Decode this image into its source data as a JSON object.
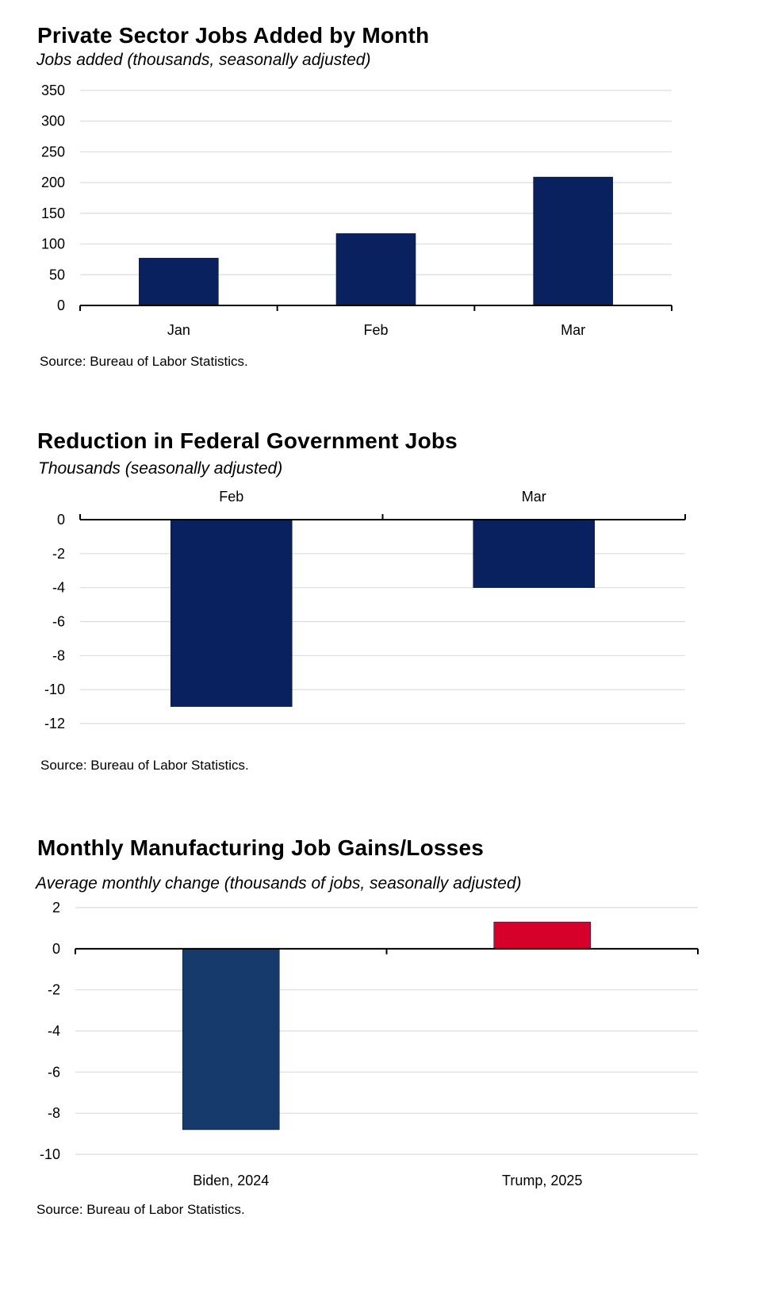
{
  "chart_data": [
    {
      "type": "bar",
      "title": "Private Sector Jobs Added by Month",
      "subtitle": "Jobs added (thousands, seasonally adjusted)",
      "categories": [
        "Jan",
        "Feb",
        "Mar"
      ],
      "values": [
        77,
        117,
        209
      ],
      "ylim": [
        0,
        350
      ],
      "yticks": [
        0,
        50,
        100,
        150,
        200,
        250,
        300,
        350
      ],
      "grid": true,
      "bar_colors": [
        "#0a2160",
        "#0a2160",
        "#0a2160"
      ],
      "source": "Source: Bureau of Labor Statistics."
    },
    {
      "type": "bar",
      "title": "Reduction in Federal Government Jobs",
      "subtitle": "Thousands (seasonally adjusted)",
      "categories": [
        "Feb",
        "Mar"
      ],
      "values": [
        -11,
        -4
      ],
      "ylim": [
        -12,
        0
      ],
      "yticks": [
        0,
        -2,
        -4,
        -6,
        -8,
        -10,
        -12
      ],
      "category_label_position": "top",
      "grid": true,
      "bar_colors": [
        "#0a2160",
        "#0a2160"
      ],
      "source": "Source: Bureau of Labor Statistics."
    },
    {
      "type": "bar",
      "title": "Monthly Manufacturing Job Gains/Losses",
      "subtitle": "Average monthly change (thousands of jobs, seasonally adjusted)",
      "categories": [
        "Biden, 2024",
        "Trump, 2025"
      ],
      "values": [
        -8.8,
        1.3
      ],
      "ylim": [
        -10,
        2
      ],
      "yticks": [
        2,
        0,
        -2,
        -4,
        -6,
        -8,
        -10
      ],
      "category_label_position": "bottom",
      "grid": true,
      "bar_colors": [
        "#163a6b",
        "#d6002a"
      ],
      "source": "Source: Bureau of Labor Statistics."
    }
  ]
}
